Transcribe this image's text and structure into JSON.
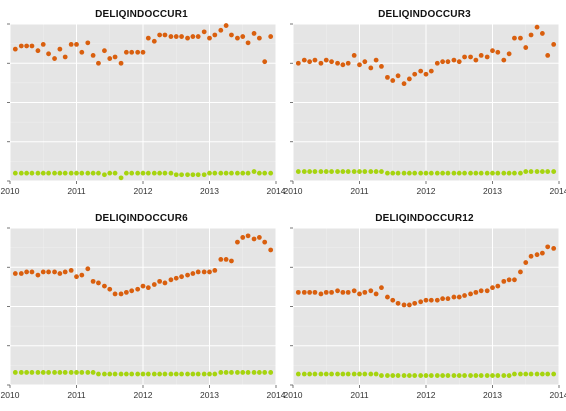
{
  "colors": {
    "panel_background": "#e5e5e5",
    "gridline_major": "#ffffff",
    "gridline_minor": "#f0f0f0",
    "series_upper": "#d95f0e",
    "series_lower": "#a6d40f"
  },
  "chart_data": [
    {
      "type": "scatter",
      "title": "DELIQINDOCCUR1",
      "xlabel": "",
      "ylabel": "",
      "x_ticks": [
        "2010",
        "2011",
        "2012",
        "2013",
        "2014"
      ],
      "xlim": [
        2010,
        2014
      ],
      "ylim": [
        0,
        100
      ],
      "y_tick_labels_shown": false,
      "grid": true,
      "x": [
        2010.08,
        2010.17,
        2010.25,
        2010.33,
        2010.42,
        2010.5,
        2010.58,
        2010.67,
        2010.75,
        2010.83,
        2010.92,
        2011.0,
        2011.08,
        2011.17,
        2011.25,
        2011.33,
        2011.42,
        2011.5,
        2011.58,
        2011.67,
        2011.75,
        2011.83,
        2011.92,
        2012.0,
        2012.08,
        2012.17,
        2012.25,
        2012.33,
        2012.42,
        2012.5,
        2012.58,
        2012.67,
        2012.75,
        2012.83,
        2012.92,
        2013.0,
        2013.08,
        2013.17,
        2013.25,
        2013.33,
        2013.42,
        2013.5,
        2013.58,
        2013.67,
        2013.75,
        2013.83,
        2013.92
      ],
      "series": [
        {
          "values": [
            84,
            86,
            86,
            86,
            83,
            87,
            81,
            78,
            84,
            79,
            87,
            87,
            82,
            88,
            80,
            75,
            83,
            78,
            79,
            75,
            82,
            82,
            82,
            82,
            91,
            89,
            93,
            93,
            92,
            92,
            92,
            91,
            92,
            92,
            95,
            91,
            93,
            96,
            99,
            93,
            91,
            92,
            88,
            94,
            91,
            76,
            92
          ]
        },
        {
          "values": [
            5,
            5,
            5,
            5,
            5,
            5,
            5,
            5,
            5,
            5,
            5,
            5,
            5,
            5,
            5,
            5,
            4,
            5,
            5,
            2,
            5,
            5,
            5,
            5,
            5,
            5,
            5,
            5,
            5,
            4,
            4,
            4,
            4,
            4,
            4,
            5,
            5,
            5,
            5,
            5,
            5,
            5,
            5,
            6,
            5,
            5,
            5
          ]
        }
      ]
    },
    {
      "type": "scatter",
      "title": "DELIQINDOCCUR3",
      "xlabel": "",
      "ylabel": "",
      "x_ticks": [
        "2010",
        "2011",
        "2012",
        "2013",
        "2014"
      ],
      "xlim": [
        2010,
        2014
      ],
      "ylim": [
        0,
        100
      ],
      "y_tick_labels_shown": false,
      "grid": true,
      "x": [
        2010.08,
        2010.17,
        2010.25,
        2010.33,
        2010.42,
        2010.5,
        2010.58,
        2010.67,
        2010.75,
        2010.83,
        2010.92,
        2011.0,
        2011.08,
        2011.17,
        2011.25,
        2011.33,
        2011.42,
        2011.5,
        2011.58,
        2011.67,
        2011.75,
        2011.83,
        2011.92,
        2012.0,
        2012.08,
        2012.17,
        2012.25,
        2012.33,
        2012.42,
        2012.5,
        2012.58,
        2012.67,
        2012.75,
        2012.83,
        2012.92,
        2013.0,
        2013.08,
        2013.17,
        2013.25,
        2013.33,
        2013.42,
        2013.5,
        2013.58,
        2013.67,
        2013.75,
        2013.83,
        2013.92
      ],
      "series": [
        {
          "values": [
            75,
            77,
            76,
            77,
            75,
            77,
            76,
            75,
            74,
            75,
            80,
            74,
            76,
            72,
            77,
            73,
            66,
            64,
            67,
            62,
            65,
            68,
            70,
            68,
            70,
            75,
            76,
            76,
            77,
            76,
            79,
            79,
            77,
            80,
            79,
            83,
            82,
            77,
            81,
            91,
            91,
            85,
            93,
            98,
            94,
            80,
            87
          ]
        },
        {
          "values": [
            6,
            6,
            6,
            6,
            6,
            6,
            6,
            6,
            6,
            6,
            6,
            6,
            6,
            6,
            6,
            6,
            5,
            5,
            5,
            5,
            5,
            5,
            5,
            5,
            5,
            5,
            5,
            5,
            5,
            5,
            5,
            5,
            5,
            5,
            5,
            5,
            5,
            5,
            5,
            5,
            5,
            6,
            6,
            6,
            6,
            6,
            6
          ]
        }
      ]
    },
    {
      "type": "scatter",
      "title": "DELIQINDOCCUR6",
      "xlabel": "",
      "ylabel": "",
      "x_ticks": [
        "2010",
        "2011",
        "2012",
        "2013",
        "2014"
      ],
      "xlim": [
        2010,
        2014
      ],
      "ylim": [
        0,
        100
      ],
      "y_tick_labels_shown": false,
      "grid": true,
      "x": [
        2010.08,
        2010.17,
        2010.25,
        2010.33,
        2010.42,
        2010.5,
        2010.58,
        2010.67,
        2010.75,
        2010.83,
        2010.92,
        2011.0,
        2011.08,
        2011.17,
        2011.25,
        2011.33,
        2011.42,
        2011.5,
        2011.58,
        2011.67,
        2011.75,
        2011.83,
        2011.92,
        2012.0,
        2012.08,
        2012.17,
        2012.25,
        2012.33,
        2012.42,
        2012.5,
        2012.58,
        2012.67,
        2012.75,
        2012.83,
        2012.92,
        2013.0,
        2013.08,
        2013.17,
        2013.25,
        2013.33,
        2013.42,
        2013.5,
        2013.58,
        2013.67,
        2013.75,
        2013.83,
        2013.92
      ],
      "series": [
        {
          "values": [
            71,
            71,
            72,
            72,
            70,
            72,
            72,
            72,
            71,
            72,
            73,
            69,
            70,
            74,
            66,
            65,
            63,
            61,
            58,
            58,
            59,
            60,
            61,
            63,
            62,
            64,
            66,
            65,
            67,
            68,
            69,
            70,
            71,
            72,
            72,
            72,
            73,
            80,
            80,
            79,
            91,
            94,
            95,
            93,
            94,
            91,
            86
          ]
        },
        {
          "values": [
            8,
            8,
            8,
            8,
            8,
            8,
            8,
            8,
            8,
            8,
            8,
            8,
            8,
            8,
            8,
            7,
            7,
            7,
            7,
            7,
            7,
            7,
            7,
            7,
            7,
            7,
            7,
            7,
            7,
            7,
            7,
            7,
            7,
            7,
            7,
            7,
            7,
            8,
            8,
            8,
            8,
            8,
            8,
            8,
            8,
            8,
            8
          ]
        }
      ]
    },
    {
      "type": "scatter",
      "title": "DELIQINDOCCUR12",
      "xlabel": "",
      "ylabel": "",
      "x_ticks": [
        "2010",
        "2011",
        "2012",
        "2013",
        "2014"
      ],
      "xlim": [
        2010,
        2014
      ],
      "ylim": [
        0,
        100
      ],
      "y_tick_labels_shown": false,
      "grid": true,
      "x": [
        2010.08,
        2010.17,
        2010.25,
        2010.33,
        2010.42,
        2010.5,
        2010.58,
        2010.67,
        2010.75,
        2010.83,
        2010.92,
        2011.0,
        2011.08,
        2011.17,
        2011.25,
        2011.33,
        2011.42,
        2011.5,
        2011.58,
        2011.67,
        2011.75,
        2011.83,
        2011.92,
        2012.0,
        2012.08,
        2012.17,
        2012.25,
        2012.33,
        2012.42,
        2012.5,
        2012.58,
        2012.67,
        2012.75,
        2012.83,
        2012.92,
        2013.0,
        2013.08,
        2013.17,
        2013.25,
        2013.33,
        2013.42,
        2013.5,
        2013.58,
        2013.67,
        2013.75,
        2013.83,
        2013.92
      ],
      "series": [
        {
          "values": [
            59,
            59,
            59,
            59,
            58,
            59,
            59,
            60,
            59,
            59,
            60,
            58,
            59,
            60,
            58,
            62,
            56,
            54,
            52,
            51,
            51,
            52,
            53,
            54,
            54,
            54,
            55,
            55,
            56,
            56,
            57,
            58,
            59,
            60,
            60,
            62,
            63,
            66,
            67,
            67,
            72,
            78,
            82,
            83,
            84,
            88,
            87
          ]
        },
        {
          "values": [
            7,
            7,
            7,
            7,
            7,
            7,
            7,
            7,
            7,
            7,
            7,
            7,
            7,
            7,
            7,
            6,
            6,
            6,
            6,
            6,
            6,
            6,
            6,
            6,
            6,
            6,
            6,
            6,
            6,
            6,
            6,
            6,
            6,
            6,
            6,
            6,
            6,
            6,
            6,
            7,
            7,
            7,
            7,
            7,
            7,
            7,
            7
          ]
        }
      ]
    }
  ]
}
